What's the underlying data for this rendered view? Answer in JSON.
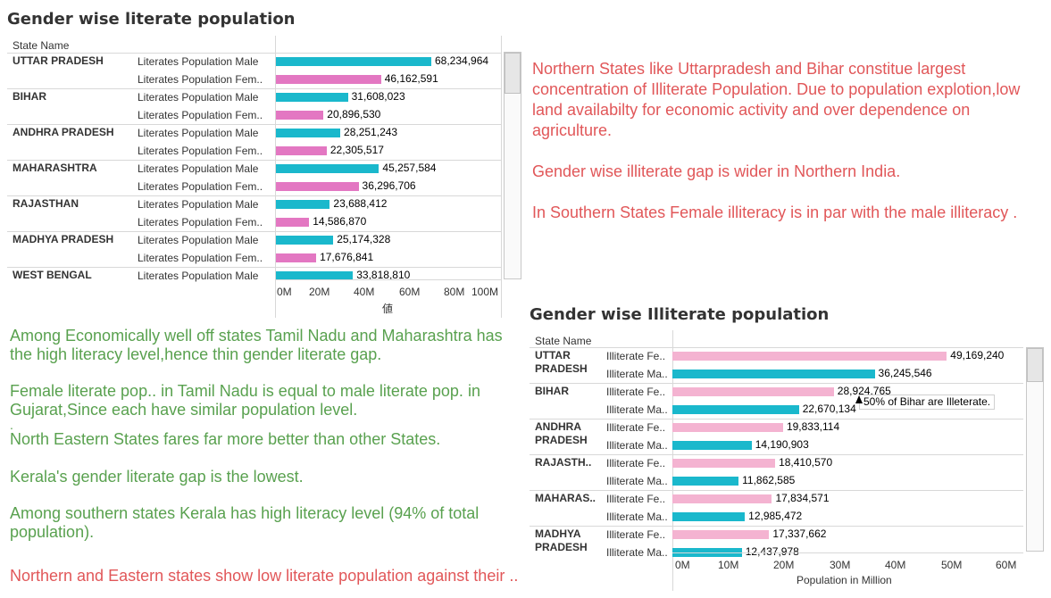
{
  "colors": {
    "male": "#1ab8cc",
    "female_literate": "#e377c2",
    "female_illiterate": "#f4b3d1",
    "red_text": "#e15759",
    "green_text": "#59a14f"
  },
  "chart1": {
    "title": "Gender wise literate population",
    "row_header": "State Name",
    "axis_label": "値",
    "ticks": [
      "0M",
      "20M",
      "40M",
      "60M",
      "80M",
      "100M"
    ]
  },
  "chart2": {
    "title": "Gender wise Illiterate population",
    "row_header": "State Name",
    "axis_label": "Population in Million",
    "ticks": [
      "0M",
      "10M",
      "20M",
      "30M",
      "40M",
      "50M",
      "60M"
    ],
    "tooltip": "50% of Bihar are Illeterate."
  },
  "chart_data": [
    {
      "type": "bar",
      "orientation": "horizontal",
      "title": "Gender wise literate population",
      "xlabel": "値",
      "xlim": [
        0,
        100000000
      ],
      "rows": [
        {
          "state": "UTTAR PRADESH",
          "measures": [
            {
              "label": "Literates Population Male",
              "value": 68234964,
              "value_label": "68,234,964",
              "kind": "male"
            },
            {
              "label": "Literates Population Fem..",
              "value": 46162591,
              "value_label": "46,162,591",
              "kind": "female"
            }
          ]
        },
        {
          "state": "BIHAR",
          "measures": [
            {
              "label": "Literates Population Male",
              "value": 31608023,
              "value_label": "31,608,023",
              "kind": "male"
            },
            {
              "label": "Literates Population Fem..",
              "value": 20896530,
              "value_label": "20,896,530",
              "kind": "female"
            }
          ]
        },
        {
          "state": "ANDHRA PRADESH",
          "measures": [
            {
              "label": "Literates Population Male",
              "value": 28251243,
              "value_label": "28,251,243",
              "kind": "male"
            },
            {
              "label": "Literates Population Fem..",
              "value": 22305517,
              "value_label": "22,305,517",
              "kind": "female"
            }
          ]
        },
        {
          "state": "MAHARASHTRA",
          "measures": [
            {
              "label": "Literates Population Male",
              "value": 45257584,
              "value_label": "45,257,584",
              "kind": "male"
            },
            {
              "label": "Literates Population Fem..",
              "value": 36296706,
              "value_label": "36,296,706",
              "kind": "female"
            }
          ]
        },
        {
          "state": "RAJASTHAN",
          "measures": [
            {
              "label": "Literates Population Male",
              "value": 23688412,
              "value_label": "23,688,412",
              "kind": "male"
            },
            {
              "label": "Literates Population Fem..",
              "value": 14586870,
              "value_label": "14,586,870",
              "kind": "female"
            }
          ]
        },
        {
          "state": "MADHYA PRADESH",
          "measures": [
            {
              "label": "Literates Population Male",
              "value": 25174328,
              "value_label": "25,174,328",
              "kind": "male"
            },
            {
              "label": "Literates Population Fem..",
              "value": 17676841,
              "value_label": "17,676,841",
              "kind": "female"
            }
          ]
        },
        {
          "state": "WEST BENGAL",
          "measures": [
            {
              "label": "Literates Population Male",
              "value": 33818810,
              "value_label": "33,818,810",
              "kind": "male"
            }
          ]
        }
      ]
    },
    {
      "type": "bar",
      "orientation": "horizontal",
      "title": "Gender wise Illiterate population",
      "xlabel": "Population in Million",
      "xlim": [
        0,
        63000000
      ],
      "rows": [
        {
          "state": "UTTAR PRADESH",
          "measures": [
            {
              "label": "Illiterate Fe..",
              "value": 49169240,
              "value_label": "49,169,240",
              "kind": "female"
            },
            {
              "label": "Illiterate Ma..",
              "value": 36245546,
              "value_label": "36,245,546",
              "kind": "male"
            }
          ]
        },
        {
          "state": "BIHAR",
          "measures": [
            {
              "label": "Illiterate Fe..",
              "value": 28924765,
              "value_label": "28,924,765",
              "kind": "female"
            },
            {
              "label": "Illiterate Ma..",
              "value": 22670134,
              "value_label": "22,670,134",
              "kind": "male"
            }
          ]
        },
        {
          "state": "ANDHRA PRADESH",
          "measures": [
            {
              "label": "Illiterate Fe..",
              "value": 19833114,
              "value_label": "19,833,114",
              "kind": "female"
            },
            {
              "label": "Illiterate Ma..",
              "value": 14190903,
              "value_label": "14,190,903",
              "kind": "male"
            }
          ]
        },
        {
          "state": "RAJASTH..",
          "measures": [
            {
              "label": "Illiterate Fe..",
              "value": 18410570,
              "value_label": "18,410,570",
              "kind": "female"
            },
            {
              "label": "Illiterate Ma..",
              "value": 11862585,
              "value_label": "11,862,585",
              "kind": "male"
            }
          ]
        },
        {
          "state": "MAHARAS..",
          "measures": [
            {
              "label": "Illiterate Fe..",
              "value": 17834571,
              "value_label": "17,834,571",
              "kind": "female"
            },
            {
              "label": "Illiterate Ma..",
              "value": 12985472,
              "value_label": "12,985,472",
              "kind": "male"
            }
          ]
        },
        {
          "state": "MADHYA PRADESH",
          "measures": [
            {
              "label": "Illiterate Fe..",
              "value": 17337662,
              "value_label": "17,337,662",
              "kind": "female"
            },
            {
              "label": "Illiterate Ma..",
              "value": 12437978,
              "value_label": "12,437,978",
              "kind": "male"
            }
          ]
        }
      ]
    }
  ],
  "notes_red_top": [
    "Northern States like Uttarpradesh and Bihar constitue largest concentration of Illiterate Population. Due to population explotion,low land availabilty for economic activity and over dependence on agriculture.",
    "Gender wise illiterate gap is wider in Northern India.",
    "In Southern States Female illiteracy is in par with the male illiteracy ."
  ],
  "notes_green": [
    "Among Economically well off states Tamil Nadu and Maharashtra has the high literacy level,hence thin gender literate gap.",
    "Female literate pop.. in Tamil Nadu is equal to male literate pop. in Gujarat,Since each have similar population level.",
    ".",
    "North Eastern States fares far more better than other States.",
    "Kerala's gender literate gap is the lowest.",
    "Among southern states Kerala has high literacy level (94% of total population)."
  ],
  "note_red_bottom": "Northern and Eastern states show low literate population against their .."
}
